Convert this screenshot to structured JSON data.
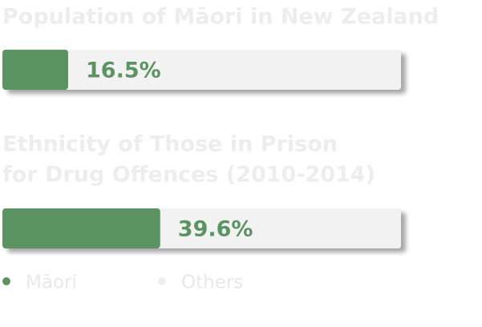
{
  "chart_data": [
    {
      "type": "bar",
      "title": [
        "Population of Māori in New Zealand"
      ],
      "values": [
        16.5
      ],
      "value_labels": [
        "16.5%"
      ],
      "xlim": [
        0,
        100
      ],
      "color": "#5b9363",
      "track_color": "#f2f2f2"
    },
    {
      "type": "bar",
      "title": [
        "Ethnicity of Those in Prison",
        "for Drug Offences (2010-2014)"
      ],
      "values": [
        39.6
      ],
      "value_labels": [
        "39.6%"
      ],
      "xlim": [
        0,
        100
      ],
      "color": "#5b9363",
      "track_color": "#f2f2f2"
    }
  ],
  "legend": [
    {
      "name": "Māori",
      "color": "#5b9363"
    },
    {
      "name": "Others",
      "color": "#eeeeee"
    }
  ]
}
